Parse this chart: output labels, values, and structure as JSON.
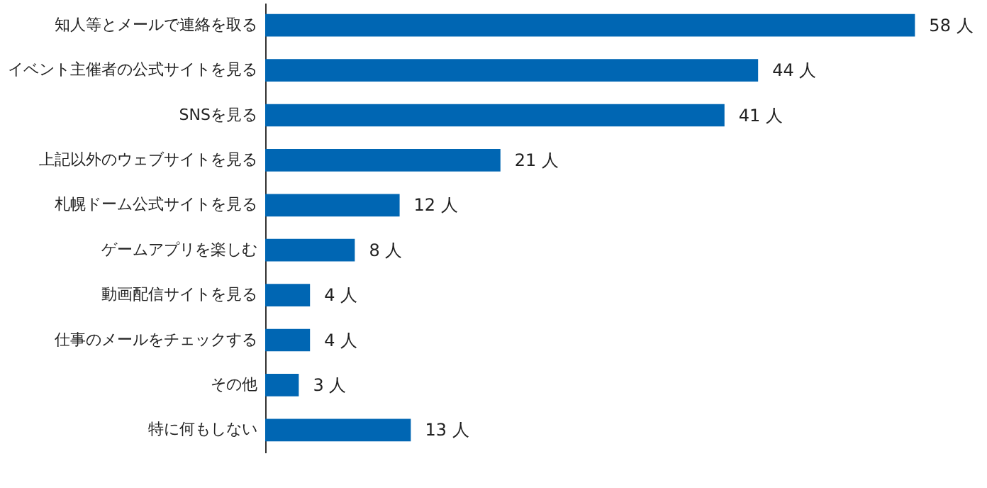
{
  "chart_data": {
    "type": "bar",
    "orientation": "horizontal",
    "categories": [
      "知人等とメールで連絡を取る",
      "イベント主催者の公式サイトを見る",
      "SNSを見る",
      "上記以外のウェブサイトを見る",
      "札幌ドーム公式サイトを見る",
      "ゲームアプリを楽しむ",
      "動画配信サイトを見る",
      "仕事のメールをチェックする",
      "その他",
      "特に何もしない"
    ],
    "values": [
      58,
      44,
      41,
      21,
      12,
      8,
      4,
      4,
      3,
      13
    ],
    "value_labels": [
      "58 人",
      "44 人",
      "41 人",
      "21 人",
      "12 人",
      "8 人",
      "4 人",
      "4 人",
      "3 人",
      "13 人"
    ],
    "color": "#0066b3",
    "grid": false
  }
}
